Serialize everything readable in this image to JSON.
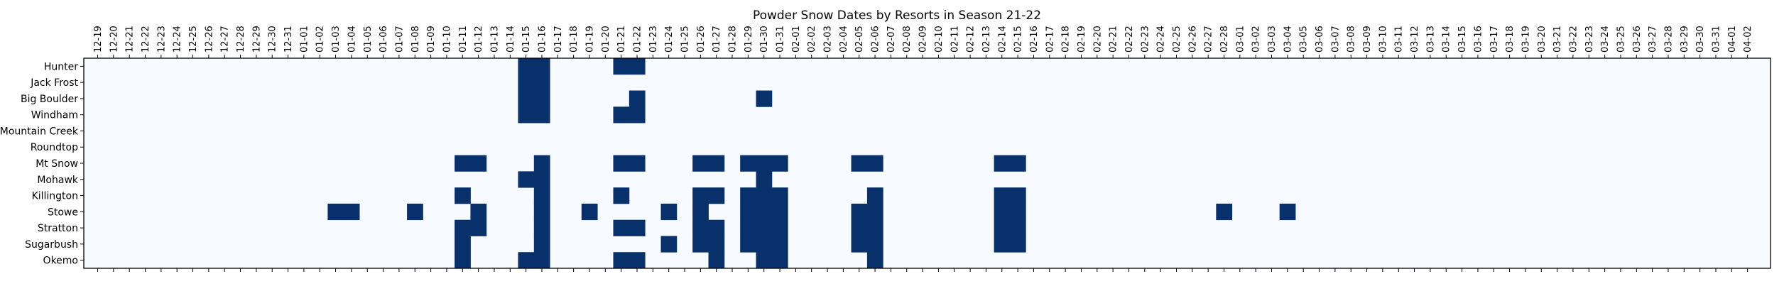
{
  "chart_data": {
    "type": "heatmap",
    "title": "Powder Snow Dates by Resorts in Season 21-22",
    "xlabel": "",
    "ylabel": "",
    "x_ticks": [
      "12-19",
      "12-20",
      "12-21",
      "12-22",
      "12-23",
      "12-24",
      "12-25",
      "12-26",
      "12-27",
      "12-28",
      "12-29",
      "12-30",
      "12-31",
      "01-01",
      "01-02",
      "01-03",
      "01-04",
      "01-05",
      "01-06",
      "01-07",
      "01-08",
      "01-09",
      "01-10",
      "01-11",
      "01-12",
      "01-13",
      "01-14",
      "01-15",
      "01-16",
      "01-17",
      "01-18",
      "01-19",
      "01-20",
      "01-21",
      "01-22",
      "01-23",
      "01-24",
      "01-25",
      "01-26",
      "01-27",
      "01-28",
      "01-29",
      "01-30",
      "01-31",
      "02-01",
      "02-02",
      "02-03",
      "02-04",
      "02-05",
      "02-06",
      "02-07",
      "02-08",
      "02-09",
      "02-10",
      "02-11",
      "02-12",
      "02-13",
      "02-14",
      "02-15",
      "02-16",
      "02-17",
      "02-18",
      "02-19",
      "02-20",
      "02-21",
      "02-22",
      "02-23",
      "02-24",
      "02-25",
      "02-26",
      "02-27",
      "02-28",
      "03-01",
      "03-02",
      "03-03",
      "03-04",
      "03-05",
      "03-06",
      "03-07",
      "03-08",
      "03-09",
      "03-10",
      "03-11",
      "03-12",
      "03-13",
      "03-14",
      "03-15",
      "03-16",
      "03-17",
      "03-18",
      "03-19",
      "03-20",
      "03-21",
      "03-22",
      "03-23",
      "03-24",
      "03-25",
      "03-26",
      "03-27",
      "03-28",
      "03-29",
      "03-30",
      "03-31",
      "04-01",
      "04-02"
    ],
    "y_ticks": [
      "Hunter",
      "Jack Frost",
      "Big Boulder",
      "Windham",
      "Mountain Creek",
      "Roundtop",
      "Mt Snow",
      "Mohawk",
      "Killington",
      "Stowe",
      "Stratton",
      "Sugarbush",
      "Okemo"
    ],
    "colormap": "Blues",
    "colors": {
      "low": "#f7fbff",
      "high": "#08306b"
    },
    "powder_days": {
      "Hunter": [
        "01-15",
        "01-16",
        "01-21",
        "01-22"
      ],
      "Jack Frost": [
        "01-15",
        "01-16"
      ],
      "Big Boulder": [
        "01-15",
        "01-16",
        "01-22",
        "01-30"
      ],
      "Windham": [
        "01-15",
        "01-16",
        "01-21",
        "01-22"
      ],
      "Mountain Creek": [],
      "Roundtop": [],
      "Mt Snow": [
        "01-11",
        "01-12",
        "01-16",
        "01-21",
        "01-22",
        "01-26",
        "01-27",
        "01-29",
        "01-30",
        "01-31",
        "02-05",
        "02-06",
        "02-14",
        "02-15"
      ],
      "Mohawk": [
        "01-15",
        "01-16",
        "01-30"
      ],
      "Killington": [
        "01-11",
        "01-16",
        "01-21",
        "01-26",
        "01-27",
        "01-29",
        "01-30",
        "01-31",
        "02-06",
        "02-14",
        "02-15"
      ],
      "Stowe": [
        "01-03",
        "01-04",
        "01-08",
        "01-12",
        "01-16",
        "01-19",
        "01-24",
        "01-26",
        "01-29",
        "01-30",
        "01-31",
        "02-05",
        "02-06",
        "02-14",
        "02-15",
        "02-28",
        "03-04"
      ],
      "Stratton": [
        "01-11",
        "01-12",
        "01-16",
        "01-21",
        "01-22",
        "01-26",
        "01-27",
        "01-29",
        "01-30",
        "01-31",
        "02-05",
        "02-06",
        "02-14",
        "02-15"
      ],
      "Sugarbush": [
        "01-11",
        "01-16",
        "01-24",
        "01-26",
        "01-27",
        "01-29",
        "01-30",
        "01-31",
        "02-05",
        "02-06",
        "02-14",
        "02-15"
      ],
      "Okemo": [
        "01-11",
        "01-15",
        "01-16",
        "01-21",
        "01-22",
        "01-27",
        "01-30",
        "01-31",
        "02-06"
      ]
    }
  }
}
